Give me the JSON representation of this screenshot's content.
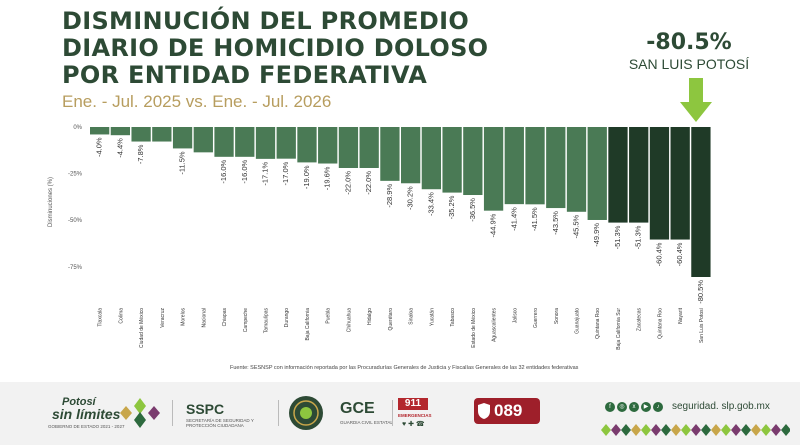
{
  "header": {
    "title_lines": [
      "DISMINUCIÓN DEL PROMEDIO",
      "DIARIO DE HOMICIDIO DOLOSO",
      "POR ENTIDAD FEDERATIVA"
    ],
    "subtitle": "Ene. - Jul. 2025 vs. Ene. - Jul. 2026"
  },
  "highlight": {
    "value": "-80.5%",
    "label": "SAN LUIS POTOSÍ",
    "arrow_icon": "down-arrow-icon",
    "arrow_color": "#8dc63f"
  },
  "colors": {
    "bar_light": "#4a7a55",
    "bar_dark": "#1f3a27",
    "title": "#2d4a35",
    "subtitle": "#b79d5e"
  },
  "chart_data": {
    "type": "bar",
    "ylabel": "Disminuciones (%)",
    "ylim": [
      -80.5,
      0
    ],
    "yticks": [
      0,
      -25,
      -50,
      -75
    ],
    "ytick_labels": [
      "0%",
      "-25%",
      "-50%",
      "-75%"
    ],
    "categories": [
      "Tlaxcala",
      "Colima",
      "Ciudad de México",
      "Veracruz",
      "Morelos",
      "Nacional",
      "Chiapas",
      "Campeche",
      "Tamaulipas",
      "Durango",
      "Baja California",
      "Puebla",
      "Chihuahua",
      "Hidalgo",
      "Querétaro",
      "Sinaloa",
      "Yucatán",
      "Tabasco",
      "Estado de México",
      "Aguascalientes",
      "Jalisco",
      "Guerrero",
      "Sonora",
      "Guanajuato",
      "Quintana Roo",
      "Baja California Sur",
      "Zacatecas",
      "Quintana Roo",
      "Nayarit",
      "San Luis Potosí"
    ],
    "values": [
      -4.0,
      -4.4,
      -7.8,
      -7.8,
      -11.5,
      -13.6,
      -16.0,
      -16.0,
      -17.1,
      -17.0,
      -19.0,
      -19.6,
      -22.0,
      -22.0,
      -28.9,
      -30.2,
      -33.4,
      -35.2,
      -36.5,
      -44.9,
      -41.4,
      -41.5,
      -43.5,
      -45.5,
      -49.9,
      -51.3,
      -51.3,
      -60.4,
      -60.4,
      -80.5
    ],
    "data_labels": [
      "-4.0%",
      "-4.4%",
      "-7.8%",
      "",
      "-11.5%",
      "",
      "-16.0%",
      "-16.0%",
      "-17.1%",
      "-17.0%",
      "-19.0%",
      "-19.6%",
      "-22.0%",
      "-22.0%",
      "-28.9%",
      "-30.2%",
      "-33.4%",
      "-35.2%",
      "-36.5%",
      "-44.9%",
      "-41.4%",
      "-41.5%",
      "-43.5%",
      "-45.5%",
      "-49.9%",
      "-51.3%",
      "-51.3%",
      "-60.4%",
      "-60.4%",
      "-80.5%"
    ],
    "dark_from_index": 25
  },
  "source": "Fuente: SESNSP con información reportada por las Procuradurías Generales de Justicia y Fiscalías Generales de las 32 entidades federativas",
  "footer": {
    "potosi_line1": "Potosí",
    "potosi_line2": "sin límites",
    "potosi_line3": "GOBIERNO DE ESTADO 2021 - 2027",
    "sspc": "SSPC",
    "sspc_sub": "SECRETARÍA DE SEGURIDAD Y PROTECCIÓN CIUDADANA",
    "gce": "GCE",
    "gce_sub": "GUARDIA CIVIL ESTATAL",
    "n911": "911",
    "n911_sub": "EMERGENCIAS",
    "n089": "089",
    "website": "seguridad. slp.gob.mx",
    "social_icons": [
      "facebook-icon",
      "instagram-icon",
      "x-icon",
      "youtube-icon",
      "tiktok-icon"
    ]
  }
}
